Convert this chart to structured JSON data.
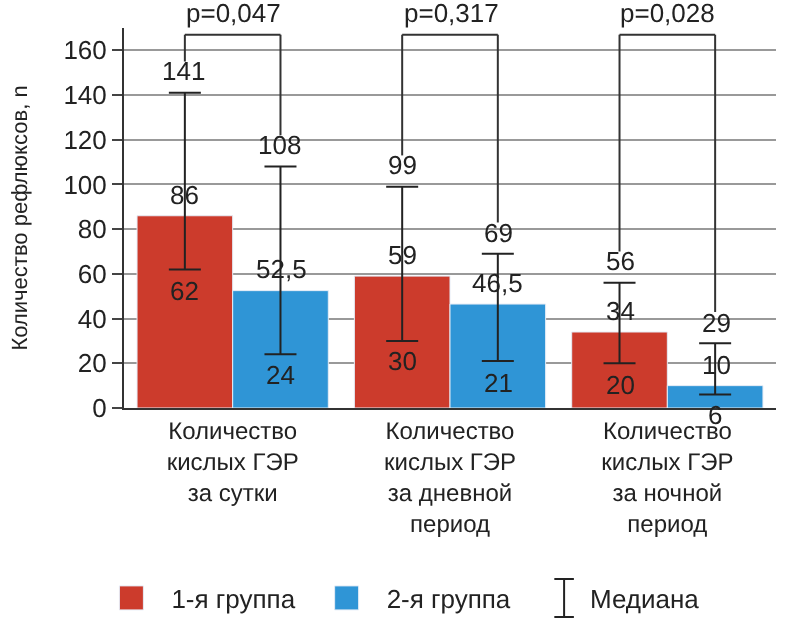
{
  "chart_data": {
    "type": "bar",
    "ylabel": "Количество рефлюксов, n",
    "categories": [
      "Количество\nкислых ГЭР\nза сутки",
      "Количество\nкислых ГЭР\nза дневной\nпериод",
      "Количество\nкислых ГЭР\nза ночной\nпериод"
    ],
    "series": [
      {
        "name": "1-я группа",
        "color": "#cc3b2c",
        "values": [
          86,
          59,
          34
        ],
        "value_labels": [
          "86",
          "59",
          "34"
        ],
        "errors": [
          [
            62,
            141
          ],
          [
            30,
            99
          ],
          [
            20,
            56
          ]
        ]
      },
      {
        "name": "2-я группа",
        "color": "#2f95d6",
        "values": [
          52.5,
          46.5,
          10
        ],
        "value_labels": [
          "52,5",
          "46,5",
          "10"
        ],
        "errors": [
          [
            24,
            108
          ],
          [
            21,
            69
          ],
          [
            6,
            29
          ]
        ]
      }
    ],
    "ylim": [
      0,
      170
    ],
    "yticks": [
      0,
      20,
      40,
      60,
      80,
      100,
      120,
      140,
      160
    ],
    "grid": "y",
    "legend": "bottom",
    "annotations": [
      "p=0,047",
      "p=0,317",
      "p=0,028",
      "141",
      "99",
      "56",
      "108",
      "69",
      "29",
      {
        "text": "62",
        "x": "Количество\nкислых ГЭР\nза сутки",
        "y": 62
      },
      {
        "text": "30",
        "x": "Количество\nкислых ГЭР\nза дневной\nпериод",
        "y": 30
      },
      {
        "text": "20",
        "x": "Количество\nкислых ГЭР\nза ночной\nпериод",
        "y": 20
      },
      {
        "text": "24",
        "x": "Количество\nкислых ГЭР\nза сутки",
        "y": 24
      },
      {
        "text": "21",
        "x": "Количество\nкислых ГЭР\nза дневной\nпериод",
        "y": 21
      },
      {
        "text": "6",
        "x": "Количество\nкислых ГЭР\nза ночной\nпериод",
        "y": 6
      },
      "Медиана"
    ]
  }
}
